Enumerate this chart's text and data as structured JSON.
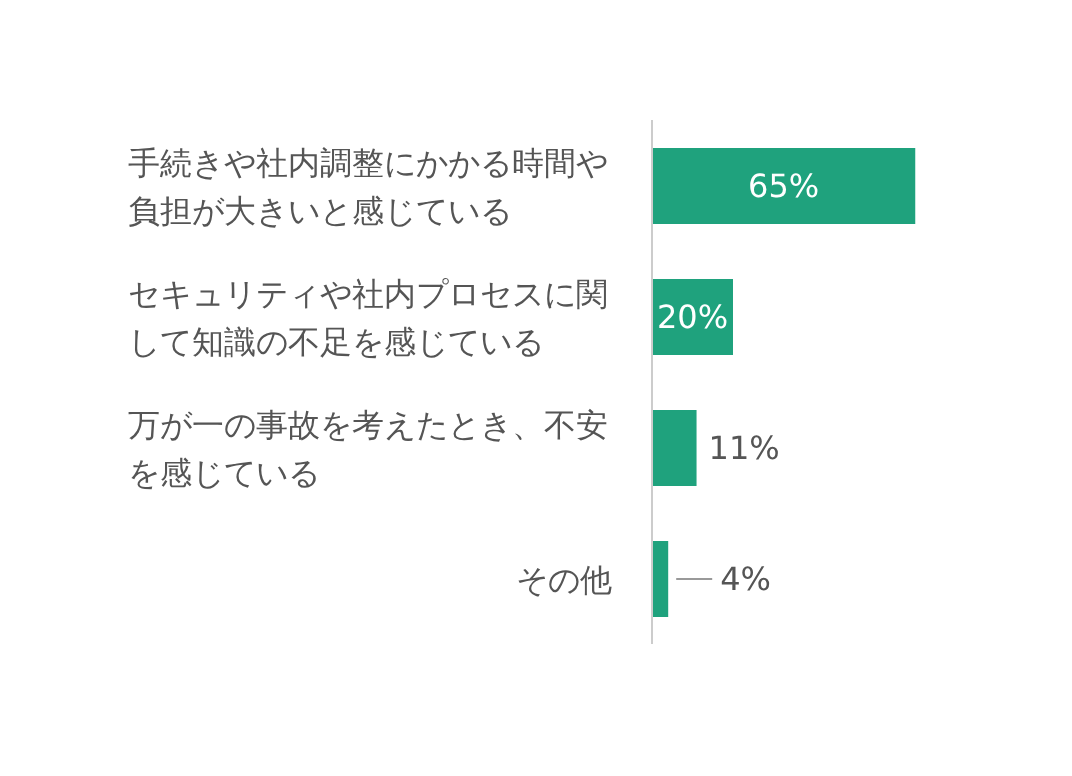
{
  "chart_data": {
    "type": "bar",
    "orientation": "horizontal",
    "categories": [
      "手続きや社内調整にかかる時間や負担が大きいと感じている",
      "セキュリティや社内プロセスに関して知識の不足を感じている",
      "万が一の事故を考えたとき、不安を感じている",
      "その他"
    ],
    "values": [
      65,
      20,
      11,
      4
    ],
    "color": "#1fa27d",
    "value_labels": [
      "65%",
      "20%",
      "11%",
      "4%"
    ],
    "grid": false,
    "tick_labels": "y"
  }
}
